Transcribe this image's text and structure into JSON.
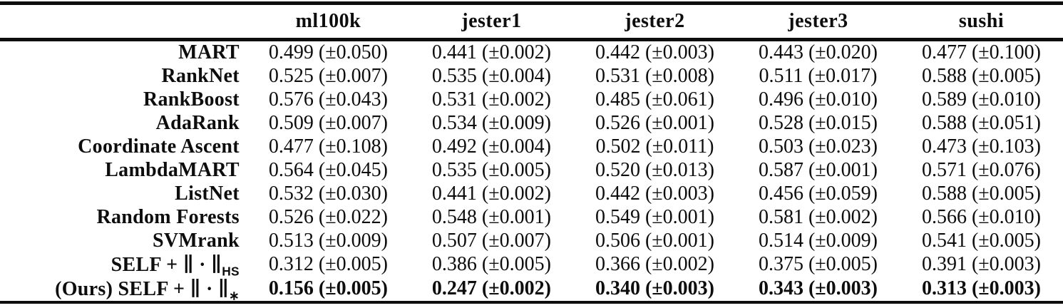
{
  "table": {
    "corner_label": "",
    "columns": [
      "ml100k",
      "jester1",
      "jester2",
      "jester3",
      "sushi"
    ],
    "rows": [
      {
        "label": "MART",
        "label_sub": "",
        "bold": false,
        "cells": [
          "0.499 (±0.050)",
          "0.441 (±0.002)",
          "0.442 (±0.003)",
          "0.443 (±0.020)",
          "0.477 (±0.100)"
        ]
      },
      {
        "label": "RankNet",
        "label_sub": "",
        "bold": false,
        "cells": [
          "0.525 (±0.007)",
          "0.535 (±0.004)",
          "0.531 (±0.008)",
          "0.511 (±0.017)",
          "0.588 (±0.005)"
        ]
      },
      {
        "label": "RankBoost",
        "label_sub": "",
        "bold": false,
        "cells": [
          "0.576 (±0.043)",
          "0.531 (±0.002)",
          "0.485 (±0.061)",
          "0.496 (±0.010)",
          "0.589 (±0.010)"
        ]
      },
      {
        "label": "AdaRank",
        "label_sub": "",
        "bold": false,
        "cells": [
          "0.509 (±0.007)",
          "0.534 (±0.009)",
          "0.526 (±0.001)",
          "0.528 (±0.015)",
          "0.588 (±0.051)"
        ]
      },
      {
        "label": "Coordinate Ascent",
        "label_sub": "",
        "bold": false,
        "cells": [
          "0.477 (±0.108)",
          "0.492 (±0.004)",
          "0.502 (±0.011)",
          "0.503 (±0.023)",
          "0.473 (±0.103)"
        ]
      },
      {
        "label": "LambdaMART",
        "label_sub": "",
        "bold": false,
        "cells": [
          "0.564 (±0.045)",
          "0.535 (±0.005)",
          "0.520 (±0.013)",
          "0.587 (±0.001)",
          "0.571 (±0.076)"
        ]
      },
      {
        "label": "ListNet",
        "label_sub": "",
        "bold": false,
        "cells": [
          "0.532 (±0.030)",
          "0.441 (±0.002)",
          "0.442 (±0.003)",
          "0.456 (±0.059)",
          "0.588 (±0.005)"
        ]
      },
      {
        "label": "Random Forests",
        "label_sub": "",
        "bold": false,
        "cells": [
          "0.526 (±0.022)",
          "0.548 (±0.001)",
          "0.549 (±0.001)",
          "0.581 (±0.002)",
          "0.566 (±0.010)"
        ]
      },
      {
        "label": "SVMrank",
        "label_sub": "",
        "bold": false,
        "cells": [
          "0.513 (±0.009)",
          "0.507 (±0.007)",
          "0.506 (±0.001)",
          "0.514 (±0.009)",
          "0.541 (±0.005)"
        ]
      },
      {
        "label": "SELF + ∥ · ∥",
        "label_sub": "HS",
        "bold": false,
        "cells": [
          "0.312 (±0.005)",
          "0.386 (±0.005)",
          "0.366 (±0.002)",
          "0.375 (±0.005)",
          "0.391 (±0.003)"
        ]
      },
      {
        "label": "(Ours) SELF + ∥ · ∥",
        "label_sub": "∗",
        "bold": true,
        "cells": [
          "0.156 (±0.005)",
          "0.247 (±0.002)",
          "0.340 (±0.003)",
          "0.343 (±0.003)",
          "0.313 (±0.003)"
        ]
      }
    ]
  },
  "colors": {
    "text": "#0d0d0d",
    "rule": "#0d0d0d",
    "background": "#ffffff"
  }
}
